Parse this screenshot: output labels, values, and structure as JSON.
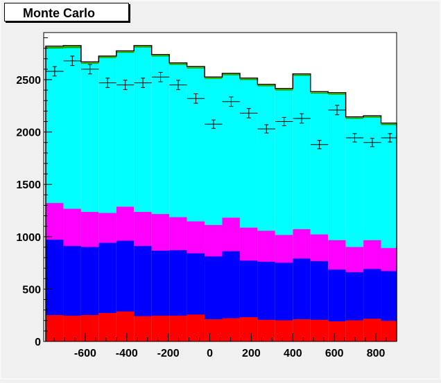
{
  "chart_data": {
    "type": "bar",
    "title": "Monte Carlo",
    "xlabel": "",
    "ylabel": "",
    "xlim": [
      -800,
      900
    ],
    "ylim": [
      0,
      2950
    ],
    "x_ticks": [
      -600,
      -400,
      -200,
      0,
      200,
      400,
      600,
      800
    ],
    "y_ticks": [
      0,
      500,
      1000,
      1500,
      2000,
      2500
    ],
    "bin_edges": [
      -790,
      -705,
      -620,
      -535,
      -450,
      -365,
      -280,
      -195,
      -110,
      -25,
      60,
      145,
      230,
      315,
      400,
      485,
      570,
      655,
      740,
      825,
      910
    ],
    "stacked": true,
    "series": [
      {
        "name": "red",
        "color": "#ff0000",
        "values": [
          255,
          250,
          255,
          275,
          290,
          245,
          250,
          250,
          260,
          215,
          225,
          235,
          210,
          205,
          215,
          210,
          195,
          205,
          220,
          200
        ]
      },
      {
        "name": "blue",
        "color": "#0000ff",
        "values": [
          720,
          665,
          650,
          670,
          675,
          670,
          620,
          625,
          585,
          600,
          640,
          540,
          555,
          550,
          580,
          560,
          495,
          460,
          475,
          475
        ]
      },
      {
        "name": "magenta",
        "color": "#ff00ff",
        "values": [
          350,
          355,
          335,
          285,
          325,
          325,
          350,
          315,
          305,
          300,
          320,
          315,
          295,
          265,
          280,
          255,
          280,
          240,
          275,
          220
        ]
      },
      {
        "name": "cyan",
        "color": "#00ffff",
        "values": [
          1475,
          1535,
          1415,
          1480,
          1470,
          1570,
          1505,
          1455,
          1460,
          1395,
          1360,
          1410,
          1380,
          1380,
          1465,
          1345,
          1390,
          1225,
          1170,
          1175
        ]
      },
      {
        "name": "green",
        "color": "#00aa00",
        "values": [
          15,
          15,
          10,
          10,
          10,
          10,
          10,
          10,
          10,
          10,
          10,
          10,
          10,
          10,
          10,
          10,
          10,
          10,
          10,
          10
        ]
      },
      {
        "name": "yellow",
        "color": "#ffff00",
        "values": [
          5,
          5,
          5,
          5,
          5,
          5,
          5,
          5,
          5,
          5,
          5,
          5,
          5,
          5,
          5,
          5,
          5,
          5,
          5,
          5
        ]
      }
    ],
    "data_points": {
      "name": "data",
      "x": [
        -747,
        -662,
        -577,
        -492,
        -407,
        -322,
        -237,
        -152,
        -67,
        18,
        103,
        188,
        273,
        358,
        443,
        528,
        613,
        698,
        783,
        868
      ],
      "y": [
        2580,
        2680,
        2600,
        2470,
        2450,
        2470,
        2525,
        2450,
        2320,
        2075,
        2290,
        2180,
        2030,
        2100,
        2130,
        1880,
        2210,
        1945,
        1900,
        1945
      ],
      "y_err": [
        45,
        45,
        45,
        45,
        45,
        45,
        45,
        45,
        45,
        40,
        45,
        45,
        40,
        40,
        45,
        40,
        45,
        40,
        40,
        40
      ],
      "x_err": 42.5
    }
  }
}
